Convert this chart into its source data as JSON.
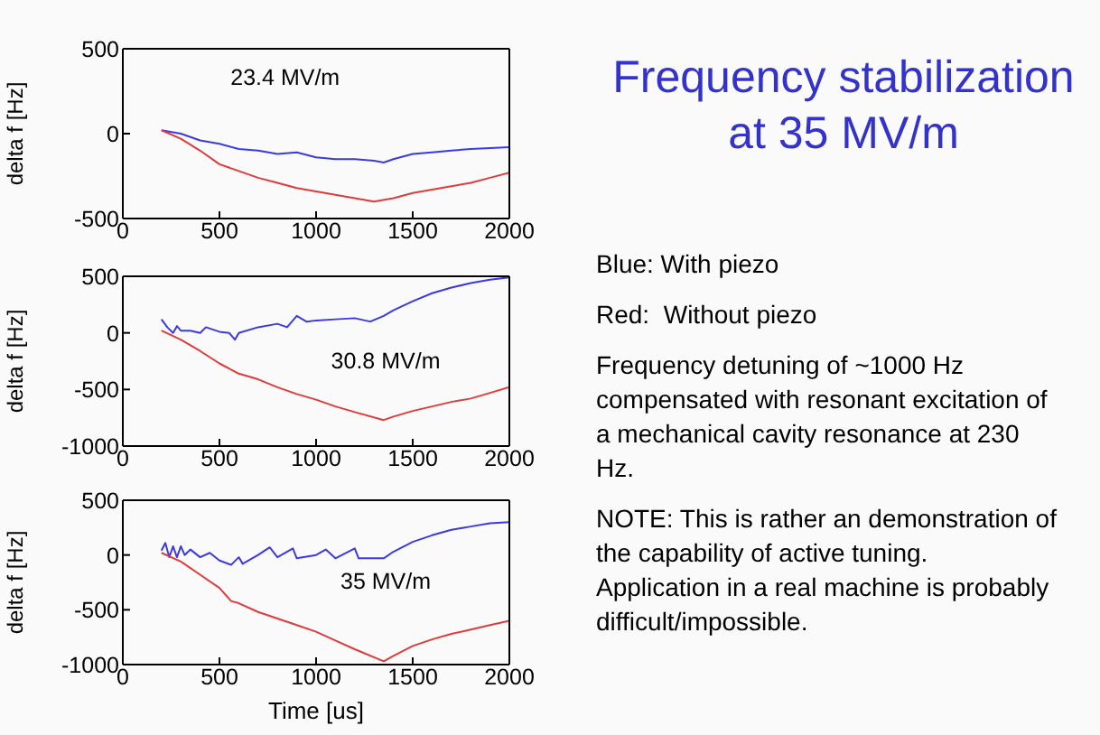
{
  "chart_data": [
    {
      "type": "line",
      "title": "23.4 MV/m",
      "ylabel": "delta f [Hz]",
      "xlim": [
        0,
        2000
      ],
      "xticks": [
        0,
        500,
        1000,
        1500,
        2000
      ],
      "ylim": [
        -500,
        500
      ],
      "yticks": [
        -500,
        0,
        500
      ],
      "marker": "none",
      "line_style": "solid",
      "series": [
        {
          "color": "#3a3ae0",
          "x": [
            200,
            300,
            400,
            500,
            600,
            700,
            800,
            900,
            1000,
            1100,
            1200,
            1300,
            1350,
            1400,
            1500,
            1600,
            1700,
            1800,
            1900,
            2000
          ],
          "values": [
            20,
            0,
            -40,
            -60,
            -90,
            -100,
            -120,
            -110,
            -140,
            -150,
            -150,
            -160,
            -170,
            -150,
            -120,
            -110,
            -100,
            -90,
            -85,
            -80
          ]
        },
        {
          "color": "#e03a3a",
          "x": [
            200,
            300,
            400,
            500,
            600,
            700,
            800,
            900,
            1000,
            1100,
            1200,
            1300,
            1400,
            1500,
            1600,
            1700,
            1800,
            1900,
            2000
          ],
          "values": [
            20,
            -30,
            -100,
            -180,
            -220,
            -260,
            -290,
            -320,
            -340,
            -360,
            -380,
            -400,
            -380,
            -350,
            -330,
            -310,
            -290,
            -260,
            -230
          ]
        }
      ]
    },
    {
      "type": "line",
      "title": "30.8 MV/m",
      "ylabel": "delta f [Hz]",
      "xlim": [
        0,
        2000
      ],
      "xticks": [
        0,
        500,
        1000,
        1500,
        2000
      ],
      "ylim": [
        -1000,
        500
      ],
      "yticks": [
        -1000,
        -500,
        0,
        500
      ],
      "marker": "none",
      "line_style": "solid",
      "series": [
        {
          "color": "#3a3ae0",
          "x": [
            200,
            230,
            260,
            280,
            300,
            350,
            400,
            430,
            500,
            550,
            580,
            600,
            700,
            800,
            850,
            900,
            950,
            1000,
            1100,
            1200,
            1280,
            1350,
            1400,
            1500,
            1600,
            1700,
            1800,
            1900,
            2000
          ],
          "values": [
            120,
            50,
            0,
            60,
            20,
            20,
            0,
            50,
            10,
            0,
            -60,
            0,
            50,
            80,
            50,
            150,
            100,
            110,
            120,
            130,
            100,
            150,
            200,
            280,
            350,
            400,
            440,
            470,
            490
          ]
        },
        {
          "color": "#e03a3a",
          "x": [
            200,
            300,
            400,
            500,
            600,
            700,
            800,
            900,
            1000,
            1100,
            1200,
            1350,
            1400,
            1500,
            1600,
            1700,
            1800,
            1900,
            2000
          ],
          "values": [
            20,
            -60,
            -160,
            -270,
            -360,
            -410,
            -480,
            -540,
            -590,
            -650,
            -700,
            -770,
            -740,
            -690,
            -650,
            -610,
            -580,
            -530,
            -480
          ]
        }
      ]
    },
    {
      "type": "line",
      "title": "35 MV/m",
      "xlabel": "Time [us]",
      "ylabel": "delta f [Hz]",
      "xlim": [
        0,
        2000
      ],
      "xticks": [
        0,
        500,
        1000,
        1500,
        2000
      ],
      "ylim": [
        -1000,
        500
      ],
      "yticks": [
        -1000,
        -500,
        0,
        500
      ],
      "marker": "none",
      "line_style": "solid",
      "series": [
        {
          "color": "#3a3ae0",
          "x": [
            200,
            220,
            240,
            260,
            280,
            300,
            320,
            350,
            400,
            450,
            500,
            560,
            600,
            620,
            700,
            760,
            800,
            880,
            900,
            1000,
            1050,
            1100,
            1200,
            1220,
            1350,
            1400,
            1500,
            1600,
            1700,
            1800,
            1900,
            2000
          ],
          "values": [
            40,
            110,
            -20,
            80,
            -20,
            80,
            0,
            50,
            -20,
            20,
            -50,
            -90,
            -20,
            -80,
            0,
            70,
            -20,
            60,
            -30,
            0,
            50,
            -30,
            60,
            -30,
            -30,
            30,
            120,
            180,
            230,
            260,
            290,
            300
          ]
        },
        {
          "color": "#e03a3a",
          "x": [
            200,
            300,
            400,
            500,
            560,
            600,
            700,
            800,
            900,
            1000,
            1100,
            1200,
            1350,
            1400,
            1500,
            1600,
            1700,
            1800,
            1900,
            2000
          ],
          "values": [
            20,
            -60,
            -180,
            -300,
            -420,
            -440,
            -520,
            -580,
            -640,
            -700,
            -780,
            -860,
            -970,
            -920,
            -830,
            -770,
            -720,
            -680,
            -640,
            -600
          ]
        }
      ]
    },
    {
      "type": "other",
      "title": "Frequency stabilization at 35 MV/m",
      "annotations": [
        "Blue: With piezo",
        "Red:  Without piezo",
        "Frequency detuning of ~1000 Hz compensated with resonant excitation of a mechanical cavity resonance at 230 Hz.",
        "NOTE: This is rather an demonstration of the capability of active tuning. Application in a real machine is probably difficult/impossible."
      ]
    }
  ]
}
